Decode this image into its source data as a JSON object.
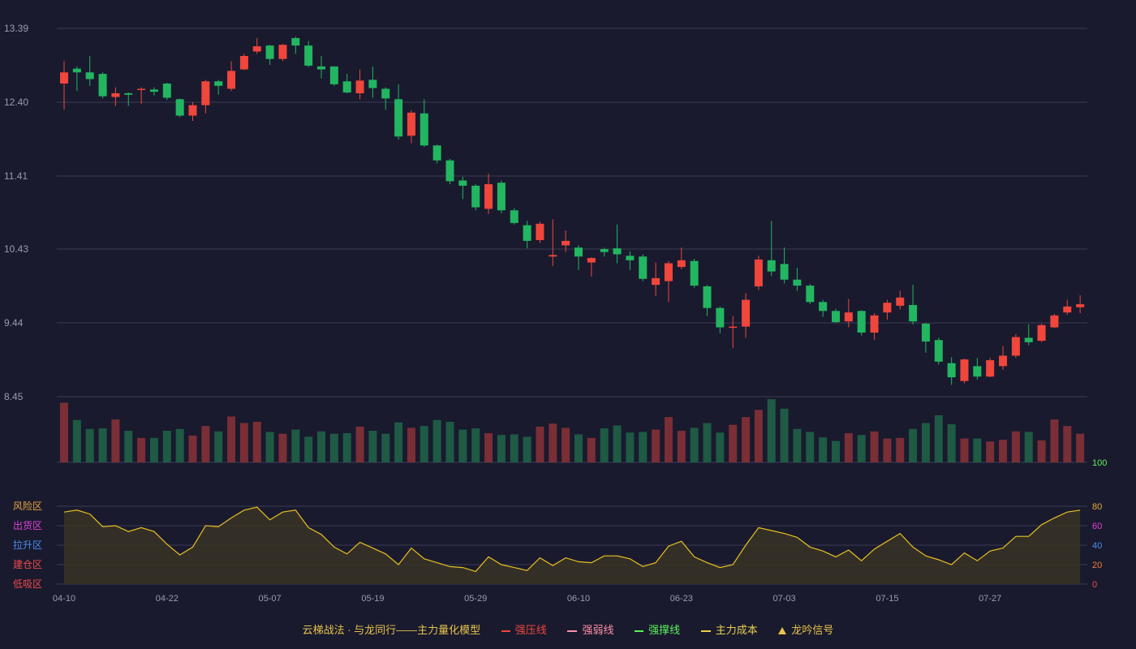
{
  "chart_data": [
    {
      "type": "candlestick",
      "yticks": [
        "13.39",
        "12.40",
        "11.41",
        "10.43",
        "9.44",
        "8.45"
      ],
      "ylim": [
        8.45,
        13.39
      ],
      "xticks": [
        "04-10",
        "04-22",
        "05-07",
        "05-19",
        "05-29",
        "06-10",
        "06-23",
        "07-03",
        "07-15",
        "07-27"
      ],
      "xtick_index": [
        0,
        8,
        16,
        24,
        32,
        40,
        48,
        56,
        64,
        72
      ],
      "up_color": "#f0463c",
      "down_color": "#22b661",
      "ohlc": [
        [
          12.65,
          12.8,
          12.3,
          12.95
        ],
        [
          12.85,
          12.8,
          12.55,
          12.88
        ],
        [
          12.8,
          12.71,
          12.62,
          13.02
        ],
        [
          12.78,
          12.48,
          12.45,
          12.8
        ],
        [
          12.47,
          12.52,
          12.35,
          12.6
        ],
        [
          12.52,
          12.5,
          12.35,
          12.53
        ],
        [
          12.57,
          12.58,
          12.38,
          12.6
        ],
        [
          12.57,
          12.54,
          12.49,
          12.6
        ],
        [
          12.65,
          12.46,
          12.43,
          12.66
        ],
        [
          12.44,
          12.22,
          12.2,
          12.45
        ],
        [
          12.22,
          12.36,
          12.15,
          12.4
        ],
        [
          12.36,
          12.68,
          12.25,
          12.7
        ],
        [
          12.68,
          12.62,
          12.5,
          12.7
        ],
        [
          12.58,
          12.82,
          12.55,
          12.95
        ],
        [
          12.84,
          13.02,
          12.83,
          13.05
        ],
        [
          13.08,
          13.15,
          13.05,
          13.26
        ],
        [
          13.16,
          12.98,
          12.9,
          13.17
        ],
        [
          12.98,
          13.17,
          12.95,
          13.18
        ],
        [
          13.26,
          13.16,
          13.05,
          13.28
        ],
        [
          13.16,
          12.89,
          12.87,
          13.22
        ],
        [
          12.88,
          12.84,
          12.72,
          13.02
        ],
        [
          12.88,
          12.64,
          12.62,
          12.88
        ],
        [
          12.68,
          12.53,
          12.52,
          12.78
        ],
        [
          12.52,
          12.69,
          12.44,
          12.84
        ],
        [
          12.7,
          12.59,
          12.46,
          12.88
        ],
        [
          12.58,
          12.45,
          12.3,
          12.6
        ],
        [
          12.44,
          11.94,
          11.9,
          12.64
        ],
        [
          11.95,
          12.26,
          11.85,
          12.29
        ],
        [
          12.25,
          11.82,
          11.8,
          12.44
        ],
        [
          11.82,
          11.62,
          11.58,
          11.83
        ],
        [
          11.62,
          11.34,
          11.3,
          11.64
        ],
        [
          11.35,
          11.28,
          11.1,
          11.4
        ],
        [
          11.28,
          10.99,
          10.95,
          11.3
        ],
        [
          10.97,
          11.3,
          10.9,
          11.44
        ],
        [
          11.32,
          10.95,
          10.91,
          11.35
        ],
        [
          10.95,
          10.78,
          10.76,
          10.98
        ],
        [
          10.75,
          10.54,
          10.44,
          10.81
        ],
        [
          10.55,
          10.77,
          10.51,
          10.8
        ],
        [
          10.33,
          10.35,
          10.2,
          10.83
        ],
        [
          10.48,
          10.54,
          10.39,
          10.68
        ],
        [
          10.45,
          10.33,
          10.15,
          10.48
        ],
        [
          10.25,
          10.31,
          10.06,
          10.32
        ],
        [
          10.43,
          10.39,
          10.33,
          10.45
        ],
        [
          10.44,
          10.36,
          10.24,
          10.76
        ],
        [
          10.34,
          10.28,
          10.15,
          10.4
        ],
        [
          10.33,
          10.03,
          10.0,
          10.36
        ],
        [
          9.95,
          10.04,
          9.8,
          10.25
        ],
        [
          10.0,
          10.24,
          9.72,
          10.27
        ],
        [
          10.19,
          10.28,
          10.16,
          10.45
        ],
        [
          10.27,
          9.94,
          9.91,
          10.3
        ],
        [
          9.93,
          9.64,
          9.53,
          9.95
        ],
        [
          9.64,
          9.38,
          9.3,
          9.66
        ],
        [
          9.38,
          9.39,
          9.1,
          9.53
        ],
        [
          9.39,
          9.75,
          9.24,
          9.84
        ],
        [
          9.93,
          10.29,
          9.88,
          10.34
        ],
        [
          10.28,
          10.13,
          10.07,
          10.81
        ],
        [
          10.23,
          10.02,
          9.97,
          10.45
        ],
        [
          10.02,
          9.94,
          9.87,
          10.18
        ],
        [
          9.94,
          9.72,
          9.69,
          9.96
        ],
        [
          9.72,
          9.6,
          9.52,
          9.75
        ],
        [
          9.6,
          9.45,
          9.44,
          9.63
        ],
        [
          9.46,
          9.58,
          9.38,
          9.76
        ],
        [
          9.6,
          9.31,
          9.27,
          9.61
        ],
        [
          9.31,
          9.54,
          9.21,
          9.57
        ],
        [
          9.58,
          9.71,
          9.48,
          9.75
        ],
        [
          9.67,
          9.78,
          9.62,
          9.87
        ],
        [
          9.68,
          9.46,
          9.42,
          9.95
        ],
        [
          9.43,
          9.19,
          9.04,
          9.44
        ],
        [
          9.21,
          8.92,
          8.88,
          9.24
        ],
        [
          8.9,
          8.71,
          8.61,
          8.98
        ],
        [
          8.66,
          8.95,
          8.63,
          8.96
        ],
        [
          8.86,
          8.72,
          8.68,
          8.97
        ],
        [
          8.72,
          8.94,
          8.71,
          8.97
        ],
        [
          8.86,
          9.0,
          8.81,
          9.13
        ],
        [
          9.0,
          9.25,
          8.97,
          9.29
        ],
        [
          9.24,
          9.18,
          9.14,
          9.42
        ],
        [
          9.2,
          9.41,
          9.18,
          9.43
        ],
        [
          9.38,
          9.54,
          9.37,
          9.56
        ],
        [
          9.58,
          9.66,
          9.55,
          9.75
        ],
        [
          9.65,
          9.69,
          9.57,
          9.81
        ]
      ]
    },
    {
      "type": "bar",
      "name": "volume",
      "values": [
        100,
        71,
        56,
        57,
        72,
        53,
        41,
        41,
        53,
        56,
        45,
        61,
        52,
        77,
        66,
        68,
        51,
        48,
        55,
        43,
        52,
        48,
        49,
        60,
        53,
        48,
        67,
        58,
        61,
        71,
        68,
        55,
        57,
        49,
        46,
        47,
        43,
        60,
        65,
        58,
        47,
        41,
        57,
        62,
        50,
        51,
        55,
        76,
        53,
        58,
        66,
        50,
        63,
        76,
        88,
        106,
        90,
        56,
        51,
        42,
        36,
        49,
        46,
        52,
        40,
        41,
        56,
        66,
        79,
        64,
        40,
        40,
        35,
        38,
        52,
        51,
        37,
        72,
        61,
        48
      ]
    },
    {
      "type": "area",
      "name": "oscillator",
      "ylim": [
        0,
        100
      ],
      "right_ticks": [
        "100",
        "80",
        "60",
        "40",
        "20",
        "0"
      ],
      "zone_labels": [
        {
          "text": "风险区",
          "color": "#e8a83c"
        },
        {
          "text": "出货区",
          "color": "#e040d8"
        },
        {
          "text": "拉升区",
          "color": "#4a8ef0"
        },
        {
          "text": "建仓区",
          "color": "#f04a4a"
        },
        {
          "text": "低吸区",
          "color": "#f04a4a"
        }
      ],
      "values": [
        74,
        76,
        72,
        59,
        60,
        54,
        58,
        54,
        41,
        30,
        38,
        60,
        59,
        68,
        76,
        79,
        66,
        74,
        76,
        58,
        51,
        38,
        31,
        43,
        37,
        31,
        20,
        37,
        26,
        22,
        18,
        17,
        13,
        28,
        20,
        17,
        14,
        27,
        19,
        27,
        23,
        22,
        29,
        29,
        26,
        18,
        22,
        39,
        44,
        28,
        22,
        17,
        20,
        40,
        58,
        55,
        52,
        48,
        38,
        34,
        28,
        35,
        24,
        36,
        44,
        52,
        38,
        29,
        25,
        20,
        32,
        24,
        34,
        37,
        49,
        49,
        61,
        68,
        74,
        76
      ]
    }
  ],
  "legend": {
    "title": "云梯战法 · 与龙同行——主力量化模型",
    "items": [
      {
        "label": "强压线",
        "color": "#f0463c",
        "style": "line"
      },
      {
        "label": "强弱线",
        "color": "#ff8fa8",
        "style": "dashed"
      },
      {
        "label": "强撑线",
        "color": "#5cf05c",
        "style": "line"
      },
      {
        "label": "主力成本",
        "color": "#e8d04a",
        "style": "dashed"
      },
      {
        "label": "龙吟信号",
        "color": "#e8c34a",
        "style": "triangle"
      }
    ]
  }
}
